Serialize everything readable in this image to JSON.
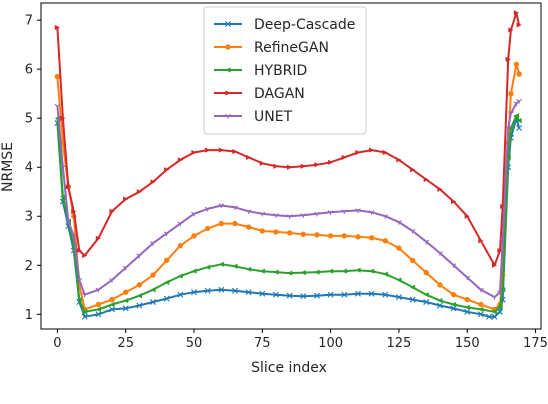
{
  "chart_data": {
    "type": "line",
    "xlabel": "Slice index",
    "ylabel": "NRMSE",
    "xlim": [
      -6,
      177
    ],
    "ylim": [
      0.7,
      7.35
    ],
    "xticks": [
      0,
      25,
      50,
      75,
      100,
      125,
      150,
      175
    ],
    "yticks": [
      1,
      2,
      3,
      4,
      5,
      6,
      7
    ],
    "grid": false,
    "legend": "top-center",
    "series": [
      {
        "name": "Deep-Cascade",
        "color": "#1f77b4",
        "marker": "x",
        "points": [
          [
            0,
            4.9
          ],
          [
            2,
            3.3
          ],
          [
            4,
            2.8
          ],
          [
            6,
            2.3
          ],
          [
            8,
            1.25
          ],
          [
            10,
            0.95
          ],
          [
            15,
            1.0
          ],
          [
            20,
            1.1
          ],
          [
            25,
            1.12
          ],
          [
            30,
            1.18
          ],
          [
            35,
            1.25
          ],
          [
            40,
            1.32
          ],
          [
            45,
            1.4
          ],
          [
            50,
            1.45
          ],
          [
            55,
            1.48
          ],
          [
            60,
            1.5
          ],
          [
            65,
            1.48
          ],
          [
            70,
            1.45
          ],
          [
            75,
            1.42
          ],
          [
            80,
            1.4
          ],
          [
            85,
            1.38
          ],
          [
            90,
            1.37
          ],
          [
            95,
            1.38
          ],
          [
            100,
            1.4
          ],
          [
            105,
            1.4
          ],
          [
            110,
            1.42
          ],
          [
            115,
            1.42
          ],
          [
            120,
            1.4
          ],
          [
            125,
            1.35
          ],
          [
            130,
            1.3
          ],
          [
            135,
            1.25
          ],
          [
            140,
            1.18
          ],
          [
            145,
            1.12
          ],
          [
            150,
            1.05
          ],
          [
            155,
            1.0
          ],
          [
            158,
            0.95
          ],
          [
            160,
            0.95
          ],
          [
            162,
            1.05
          ],
          [
            163,
            1.3
          ],
          [
            165,
            4.0
          ],
          [
            166,
            4.6
          ],
          [
            168,
            5.0
          ],
          [
            169,
            4.8
          ]
        ]
      },
      {
        "name": "RefineGAN",
        "color": "#ff7f0e",
        "marker": "o",
        "points": [
          [
            0,
            5.85
          ],
          [
            2,
            4.5
          ],
          [
            4,
            3.6
          ],
          [
            6,
            3.0
          ],
          [
            8,
            1.6
          ],
          [
            10,
            1.1
          ],
          [
            15,
            1.2
          ],
          [
            20,
            1.3
          ],
          [
            25,
            1.45
          ],
          [
            30,
            1.6
          ],
          [
            35,
            1.8
          ],
          [
            40,
            2.1
          ],
          [
            45,
            2.4
          ],
          [
            50,
            2.6
          ],
          [
            55,
            2.75
          ],
          [
            60,
            2.85
          ],
          [
            65,
            2.85
          ],
          [
            70,
            2.78
          ],
          [
            75,
            2.7
          ],
          [
            80,
            2.68
          ],
          [
            85,
            2.66
          ],
          [
            90,
            2.63
          ],
          [
            95,
            2.62
          ],
          [
            100,
            2.6
          ],
          [
            105,
            2.6
          ],
          [
            110,
            2.58
          ],
          [
            115,
            2.56
          ],
          [
            120,
            2.5
          ],
          [
            125,
            2.35
          ],
          [
            130,
            2.1
          ],
          [
            135,
            1.85
          ],
          [
            140,
            1.6
          ],
          [
            145,
            1.4
          ],
          [
            150,
            1.3
          ],
          [
            155,
            1.2
          ],
          [
            160,
            1.1
          ],
          [
            162,
            1.2
          ],
          [
            163,
            1.8
          ],
          [
            165,
            4.5
          ],
          [
            166,
            5.5
          ],
          [
            168,
            6.1
          ],
          [
            169,
            5.9
          ]
        ]
      },
      {
        "name": "HYBRID",
        "color": "#2ca02c",
        "marker": "<",
        "points": [
          [
            0,
            5.0
          ],
          [
            2,
            3.4
          ],
          [
            4,
            2.9
          ],
          [
            6,
            2.4
          ],
          [
            8,
            1.3
          ],
          [
            10,
            1.05
          ],
          [
            15,
            1.1
          ],
          [
            20,
            1.2
          ],
          [
            25,
            1.28
          ],
          [
            30,
            1.38
          ],
          [
            35,
            1.5
          ],
          [
            40,
            1.65
          ],
          [
            45,
            1.78
          ],
          [
            50,
            1.88
          ],
          [
            55,
            1.96
          ],
          [
            60,
            2.02
          ],
          [
            65,
            1.98
          ],
          [
            70,
            1.92
          ],
          [
            75,
            1.88
          ],
          [
            80,
            1.86
          ],
          [
            85,
            1.84
          ],
          [
            90,
            1.85
          ],
          [
            95,
            1.86
          ],
          [
            100,
            1.88
          ],
          [
            105,
            1.88
          ],
          [
            110,
            1.9
          ],
          [
            115,
            1.88
          ],
          [
            120,
            1.82
          ],
          [
            125,
            1.7
          ],
          [
            130,
            1.55
          ],
          [
            135,
            1.4
          ],
          [
            140,
            1.28
          ],
          [
            145,
            1.2
          ],
          [
            150,
            1.14
          ],
          [
            155,
            1.1
          ],
          [
            160,
            1.05
          ],
          [
            162,
            1.15
          ],
          [
            163,
            1.5
          ],
          [
            165,
            4.2
          ],
          [
            166,
            4.8
          ],
          [
            168,
            5.05
          ],
          [
            169,
            4.95
          ]
        ]
      },
      {
        "name": "DAGAN",
        "color": "#d62728",
        "marker": ">",
        "points": [
          [
            0,
            6.85
          ],
          [
            2,
            5.0
          ],
          [
            4,
            3.6
          ],
          [
            6,
            3.1
          ],
          [
            8,
            2.3
          ],
          [
            10,
            2.2
          ],
          [
            15,
            2.55
          ],
          [
            20,
            3.1
          ],
          [
            25,
            3.35
          ],
          [
            30,
            3.5
          ],
          [
            35,
            3.7
          ],
          [
            40,
            3.95
          ],
          [
            45,
            4.15
          ],
          [
            50,
            4.3
          ],
          [
            55,
            4.35
          ],
          [
            60,
            4.35
          ],
          [
            65,
            4.32
          ],
          [
            70,
            4.2
          ],
          [
            75,
            4.08
          ],
          [
            80,
            4.02
          ],
          [
            85,
            4.0
          ],
          [
            90,
            4.02
          ],
          [
            95,
            4.05
          ],
          [
            100,
            4.1
          ],
          [
            105,
            4.2
          ],
          [
            110,
            4.3
          ],
          [
            115,
            4.35
          ],
          [
            120,
            4.3
          ],
          [
            125,
            4.15
          ],
          [
            130,
            3.95
          ],
          [
            135,
            3.75
          ],
          [
            140,
            3.55
          ],
          [
            145,
            3.3
          ],
          [
            150,
            3.0
          ],
          [
            155,
            2.5
          ],
          [
            160,
            2.0
          ],
          [
            162,
            2.3
          ],
          [
            163,
            3.2
          ],
          [
            165,
            6.2
          ],
          [
            166,
            6.8
          ],
          [
            168,
            7.15
          ],
          [
            169,
            6.9
          ]
        ]
      },
      {
        "name": "UNET",
        "color": "#9467bd",
        "marker": "4",
        "points": [
          [
            0,
            5.25
          ],
          [
            2,
            4.0
          ],
          [
            4,
            2.9
          ],
          [
            6,
            2.6
          ],
          [
            8,
            1.7
          ],
          [
            10,
            1.4
          ],
          [
            15,
            1.5
          ],
          [
            20,
            1.7
          ],
          [
            25,
            1.95
          ],
          [
            30,
            2.2
          ],
          [
            35,
            2.45
          ],
          [
            40,
            2.65
          ],
          [
            45,
            2.85
          ],
          [
            50,
            3.05
          ],
          [
            55,
            3.15
          ],
          [
            60,
            3.22
          ],
          [
            65,
            3.18
          ],
          [
            70,
            3.1
          ],
          [
            75,
            3.05
          ],
          [
            80,
            3.02
          ],
          [
            85,
            3.0
          ],
          [
            90,
            3.02
          ],
          [
            95,
            3.05
          ],
          [
            100,
            3.08
          ],
          [
            105,
            3.1
          ],
          [
            110,
            3.12
          ],
          [
            115,
            3.08
          ],
          [
            120,
            3.0
          ],
          [
            125,
            2.88
          ],
          [
            130,
            2.7
          ],
          [
            135,
            2.48
          ],
          [
            140,
            2.25
          ],
          [
            145,
            2.0
          ],
          [
            150,
            1.75
          ],
          [
            155,
            1.5
          ],
          [
            160,
            1.35
          ],
          [
            162,
            1.45
          ],
          [
            163,
            2.5
          ],
          [
            165,
            4.8
          ],
          [
            166,
            5.1
          ],
          [
            168,
            5.3
          ],
          [
            169,
            5.35
          ]
        ]
      }
    ]
  }
}
